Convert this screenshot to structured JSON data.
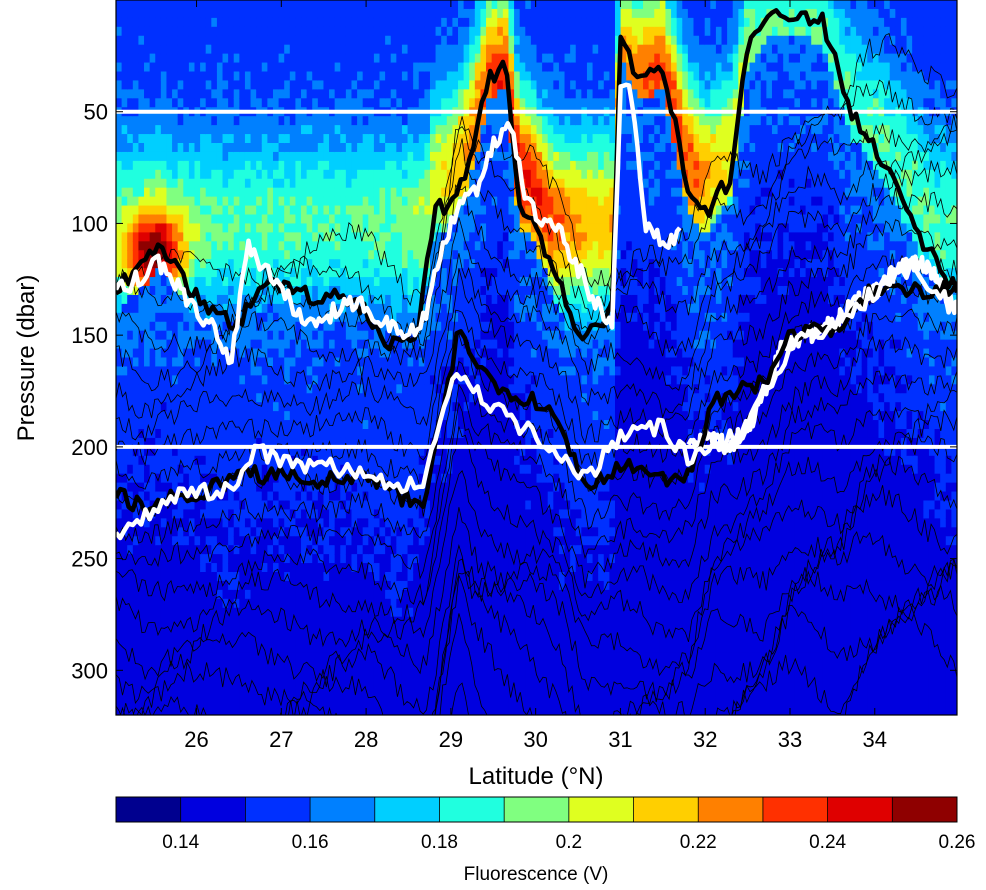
{
  "chart_data": {
    "type": "heatmap",
    "title": "",
    "xlabel": "Latitude (°N)",
    "ylabel": "Pressure (dbar)",
    "xlim": [
      25.05,
      34.97
    ],
    "ylim": [
      320,
      0
    ],
    "y_reversed": true,
    "xticks": [
      26,
      27,
      28,
      29,
      30,
      31,
      32,
      33,
      34
    ],
    "yticks": [
      50,
      100,
      150,
      200,
      250,
      300
    ],
    "colorbar": {
      "label": "Fluorescence (V)",
      "range": [
        0.13,
        0.26
      ],
      "ticks": [
        0.14,
        0.16,
        0.18,
        0.2,
        0.22,
        0.24,
        0.26
      ],
      "levels": [
        0.13,
        0.14,
        0.15,
        0.16,
        0.17,
        0.18,
        0.19,
        0.2,
        0.21,
        0.22,
        0.23,
        0.24,
        0.25,
        0.26
      ],
      "colors": [
        "#00008f",
        "#0000df",
        "#0030ff",
        "#0080ff",
        "#00cfff",
        "#20ffdf",
        "#80ff80",
        "#dfff20",
        "#ffcf00",
        "#ff8000",
        "#ff3000",
        "#df0000",
        "#8f0000"
      ]
    },
    "reference_lines": [
      {
        "pressure": 50,
        "color": "#ffffff"
      },
      {
        "pressure": 200,
        "color": "#ffffff"
      }
    ],
    "series": [
      {
        "color": "#000000",
        "style": "thick",
        "x": [
          25.05,
          25.3,
          25.6,
          25.9,
          26.2,
          26.5,
          26.8,
          27.1,
          27.4,
          27.7,
          28.0,
          28.3,
          28.6,
          28.8,
          29.0,
          29.2,
          29.45,
          29.65,
          29.8,
          30.0,
          30.2,
          30.5,
          30.7,
          30.9,
          31.0,
          31.2,
          31.5,
          31.8,
          32.0,
          32.3,
          32.5,
          32.8,
          33.1,
          33.4,
          33.7,
          34.0,
          34.3,
          34.6,
          34.97
        ],
        "y": [
          130,
          120,
          110,
          128,
          140,
          145,
          125,
          128,
          135,
          132,
          140,
          155,
          150,
          95,
          90,
          75,
          35,
          30,
          90,
          100,
          120,
          150,
          148,
          140,
          15,
          35,
          30,
          85,
          95,
          80,
          20,
          5,
          5,
          10,
          50,
          65,
          85,
          110,
          130
        ]
      },
      {
        "color": "#ffffff",
        "style": "thick",
        "x": [
          25.05,
          25.3,
          25.55,
          25.8,
          26.0,
          26.2,
          26.4,
          26.6,
          26.8,
          27.0,
          27.3,
          27.6,
          27.9,
          28.2,
          28.5,
          28.7,
          28.9,
          29.1,
          29.3,
          29.5,
          29.7,
          29.9,
          30.1,
          30.3,
          30.5,
          30.7,
          30.9,
          31.0,
          31.1,
          31.3,
          31.5,
          31.7
        ],
        "y": [
          130,
          125,
          118,
          128,
          140,
          145,
          165,
          110,
          120,
          130,
          145,
          140,
          135,
          145,
          150,
          140,
          110,
          90,
          85,
          65,
          55,
          90,
          100,
          105,
          120,
          135,
          145,
          40,
          35,
          100,
          110,
          105
        ]
      },
      {
        "color": "#ffffff",
        "style": "thick",
        "x": [
          31.8,
          32.0,
          32.3,
          32.6,
          32.9,
          33.2,
          33.5,
          33.8,
          34.0,
          34.3,
          34.6,
          34.97
        ],
        "y": [
          200,
          195,
          200,
          185,
          155,
          150,
          145,
          135,
          130,
          120,
          118,
          140
        ]
      },
      {
        "color": "#000000",
        "style": "thick",
        "x": [
          25.05,
          25.4,
          25.8,
          26.2,
          26.6,
          27.0,
          27.5,
          28.0,
          28.4,
          28.7,
          28.9,
          29.1,
          29.3,
          29.6,
          30.0,
          30.3,
          30.6,
          30.9,
          31.2,
          31.5,
          31.8,
          32.1,
          32.4,
          32.7,
          33.0,
          33.3,
          33.6,
          33.9,
          34.2,
          34.6,
          34.97
        ],
        "y": [
          220,
          228,
          222,
          218,
          212,
          213,
          215,
          212,
          222,
          225,
          185,
          145,
          165,
          175,
          180,
          190,
          218,
          210,
          208,
          215,
          212,
          180,
          175,
          170,
          150,
          145,
          148,
          132,
          128,
          130,
          130
        ]
      },
      {
        "color": "#ffffff",
        "style": "thick",
        "x": [
          25.05,
          25.4,
          25.8,
          26.2,
          26.5,
          26.7,
          27.0,
          27.5,
          28.0,
          28.4,
          28.7,
          28.9,
          29.1,
          29.3,
          29.6,
          30.0,
          30.3,
          30.6,
          30.9,
          31.2,
          31.5,
          31.8,
          32.1,
          32.4,
          32.7,
          33.0,
          33.3,
          33.6,
          34.0,
          34.3,
          34.6,
          34.97
        ],
        "y": [
          240,
          230,
          222,
          220,
          215,
          200,
          207,
          208,
          212,
          218,
          215,
          185,
          165,
          175,
          185,
          195,
          205,
          215,
          200,
          190,
          192,
          205,
          198,
          195,
          175,
          155,
          148,
          145,
          130,
          120,
          125,
          140
        ]
      }
    ]
  }
}
